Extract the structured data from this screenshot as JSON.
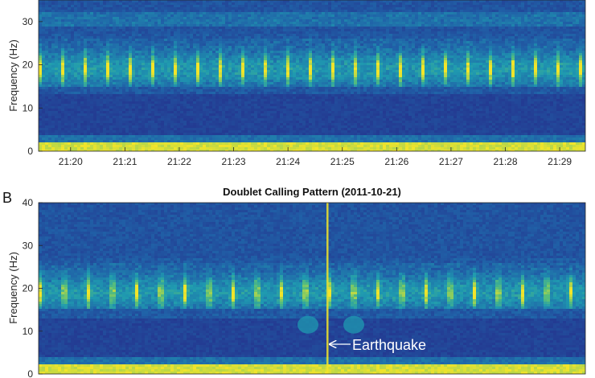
{
  "chart_data": [
    {
      "type": "heatmap",
      "panel_label": "",
      "title": "",
      "ylabel": "Frequency (Hz)",
      "ylim": [
        0,
        35
      ],
      "yticks": [
        0,
        10,
        20,
        30
      ],
      "xlabel": "",
      "xticks": [
        "21:20",
        "21:21",
        "21:22",
        "21:23",
        "21:24",
        "21:25",
        "21:26",
        "21:27",
        "21:28",
        "21:29"
      ],
      "annotations": [],
      "colors": {
        "background": "#24358f",
        "mid": "#1f9ab0",
        "high": "#f2e52a"
      }
    },
    {
      "type": "heatmap",
      "panel_label": "B",
      "title": "Doublet Calling Pattern (2011-10-21)",
      "ylabel": "Frequency (Hz)",
      "ylim": [
        0,
        40
      ],
      "yticks": [
        0,
        10,
        20,
        30,
        40
      ],
      "xlabel": "",
      "xticks": [],
      "annotations": [
        {
          "text": "Earthquake",
          "frequency_hz": 7
        }
      ],
      "colors": {
        "background": "#24358f",
        "mid": "#1f9ab0",
        "high": "#f2e52a"
      }
    }
  ]
}
